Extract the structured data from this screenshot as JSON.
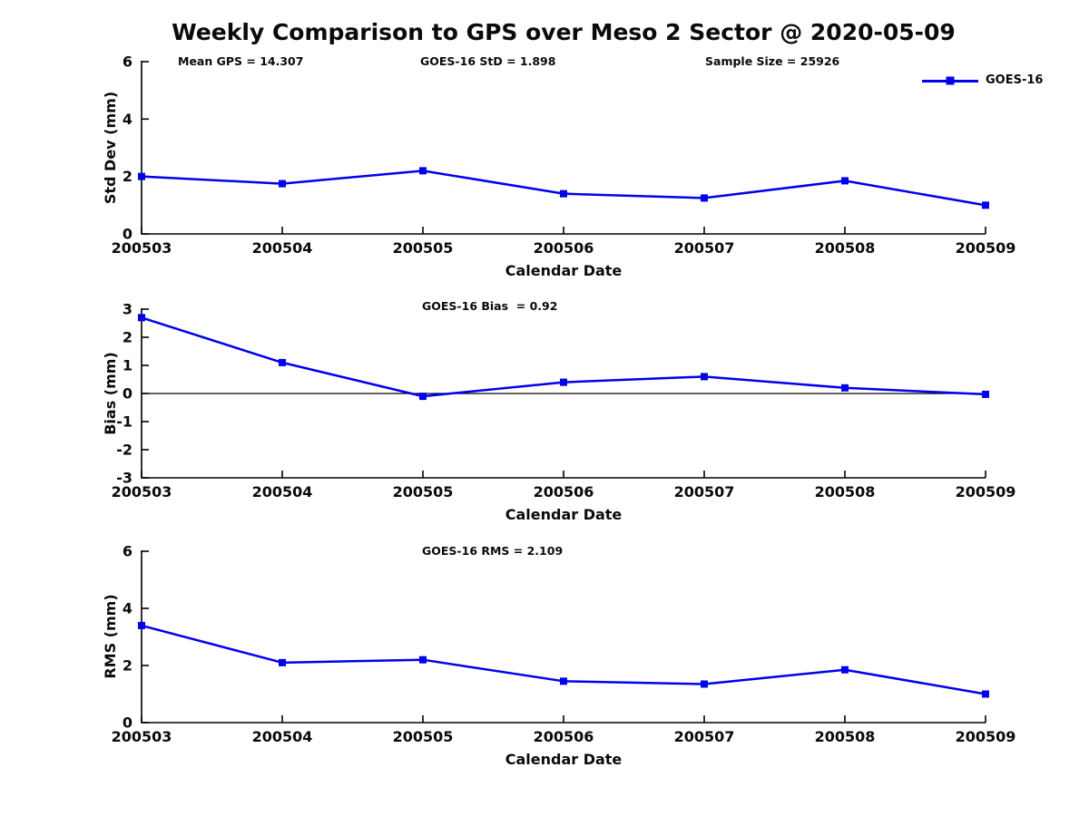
{
  "figure": {
    "title": "Weekly Comparison to GPS over Meso 2 Sector @ 2020-05-09",
    "legend": {
      "label": "GOES-16",
      "position": "top-right"
    },
    "colors": {
      "line": "#0000EE",
      "marker": "#0000EE",
      "axis": "#000000",
      "text": "#0a0a0a",
      "background": "#ffffff"
    }
  },
  "chart_data": [
    {
      "id": "stddev",
      "type": "line",
      "categories": [
        "200503",
        "200504",
        "200505",
        "200506",
        "200507",
        "200508",
        "200509"
      ],
      "series": [
        {
          "name": "GOES-16",
          "values": [
            2.0,
            1.75,
            2.2,
            1.4,
            1.25,
            1.85,
            1.0
          ]
        }
      ],
      "xlabel": "Calendar Date",
      "ylabel": "Std Dev (mm)",
      "ylim": [
        0,
        6
      ],
      "yticks": [
        0,
        2,
        4,
        6
      ],
      "grid": false,
      "zero_line": false,
      "marker": "square",
      "annotations": [
        "Mean GPS = 14.307",
        "GOES-16 StD = 1.898",
        "Sample Size = 25926"
      ]
    },
    {
      "id": "bias",
      "type": "line",
      "categories": [
        "200503",
        "200504",
        "200505",
        "200506",
        "200507",
        "200508",
        "200509"
      ],
      "series": [
        {
          "name": "GOES-16",
          "values": [
            2.7,
            1.1,
            -0.1,
            0.4,
            0.6,
            0.2,
            -0.03
          ]
        }
      ],
      "xlabel": "Calendar Date",
      "ylabel": "Bias (mm)",
      "ylim": [
        -3,
        3
      ],
      "yticks": [
        3,
        2,
        1,
        0,
        -1,
        -2,
        -3
      ],
      "grid": false,
      "zero_line": true,
      "marker": "square",
      "annotations": [
        "GOES-16 Bias  = 0.92"
      ]
    },
    {
      "id": "rms",
      "type": "line",
      "categories": [
        "200503",
        "200504",
        "200505",
        "200506",
        "200507",
        "200508",
        "200509"
      ],
      "series": [
        {
          "name": "GOES-16",
          "values": [
            3.4,
            2.1,
            2.2,
            1.45,
            1.35,
            1.85,
            1.0
          ]
        }
      ],
      "xlabel": "Calendar Date",
      "ylabel": "RMS (mm)",
      "ylim": [
        0,
        6
      ],
      "yticks": [
        0,
        2,
        4,
        6
      ],
      "grid": false,
      "zero_line": false,
      "marker": "square",
      "annotations": [
        "GOES-16 RMS = 2.109"
      ]
    }
  ]
}
